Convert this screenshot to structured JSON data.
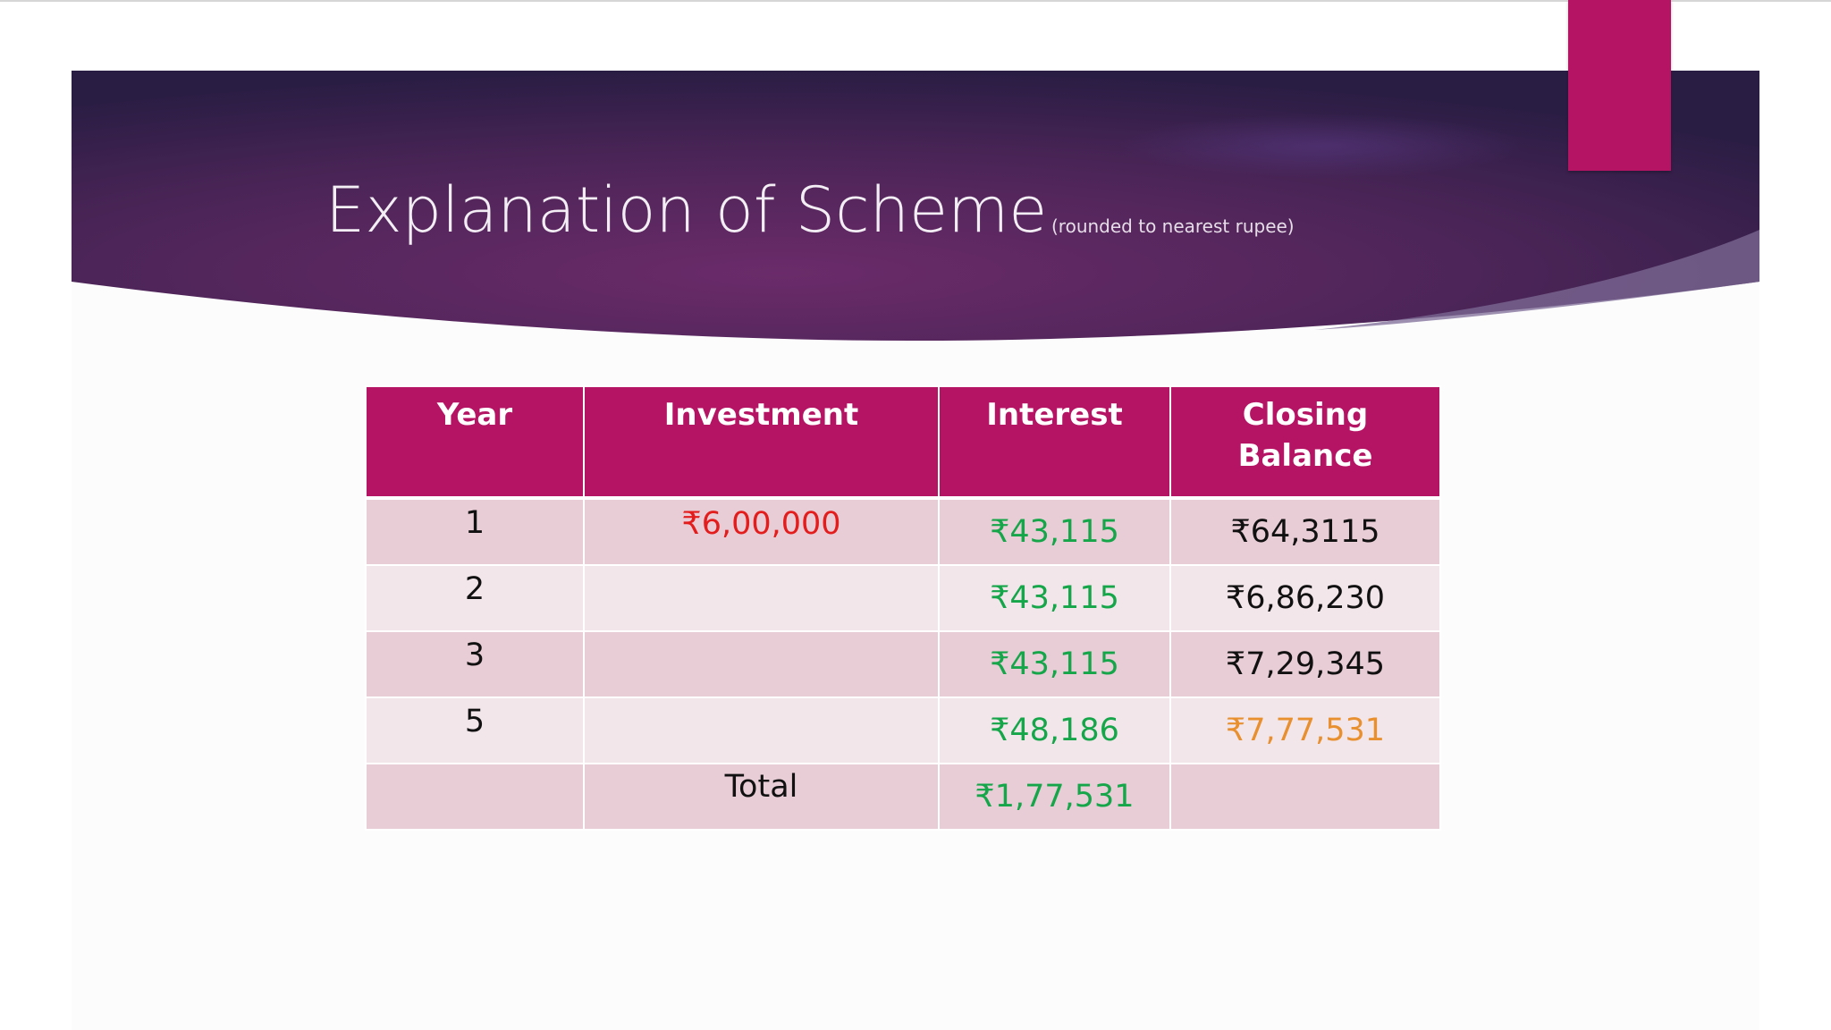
{
  "slide": {
    "title": "Explanation of Scheme",
    "subtitle": "(rounded to nearest rupee)"
  },
  "colors": {
    "banner_dark": "#2e1e48",
    "banner_mid": "#6b2a6b",
    "accent": "#b51464",
    "header_bg": "#b51464",
    "row_odd": "#e8ccd6",
    "row_even": "#f3e6eb",
    "red": "#e31c1c",
    "green": "#15a64a",
    "orange": "#e8902f"
  },
  "table": {
    "headers": {
      "year": "Year",
      "investment": "Investment",
      "interest": "Interest",
      "closing_line1": "Closing",
      "closing_line2": "Balance"
    },
    "rows": [
      {
        "year": "1",
        "investment": "₹6,00,000",
        "interest": "₹43,115",
        "closing": "₹64,3115"
      },
      {
        "year": "2",
        "investment": "",
        "interest": "₹43,115",
        "closing": "₹6,86,230"
      },
      {
        "year": "3",
        "investment": "",
        "interest": "₹43,115",
        "closing": "₹7,29,345"
      },
      {
        "year": "5",
        "investment": "",
        "interest": "₹48,186",
        "closing": "₹7,77,531"
      }
    ],
    "total": {
      "label": "Total",
      "interest": "₹1,77,531"
    }
  }
}
